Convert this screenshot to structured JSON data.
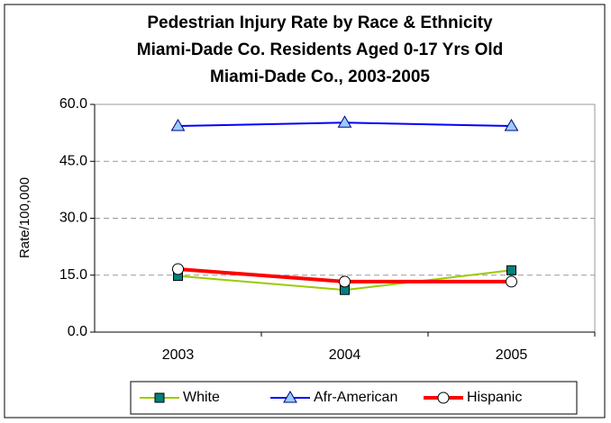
{
  "chart_data": {
    "type": "line",
    "title": [
      "Pedestrian Injury Rate by Race & Ethnicity",
      "Miami-Dade Co. Residents Aged 0-17 Yrs Old",
      "Miami-Dade Co., 2003-2005"
    ],
    "y_label": "Rate/100,000",
    "categories": [
      "2003",
      "2004",
      "2005"
    ],
    "series": [
      {
        "name": "White",
        "color": "#99cc00",
        "marker": "square",
        "marker_color": "#008080",
        "values": [
          14.8,
          11.1,
          16.3
        ]
      },
      {
        "name": "Afr-American",
        "color": "#0000ff",
        "marker": "triangle",
        "marker_color": "#99ccff",
        "values": [
          54.3,
          55.2,
          54.3
        ]
      },
      {
        "name": "Hispanic",
        "color": "#ff0000",
        "marker": "circle",
        "marker_color": "#ffffff",
        "values": [
          16.6,
          13.3,
          13.3
        ]
      }
    ],
    "ylim": [
      0,
      60
    ],
    "yticks": [
      {
        "value": 0,
        "label": "0.0"
      },
      {
        "value": 15,
        "label": "15.0"
      },
      {
        "value": 30,
        "label": "30.0"
      },
      {
        "value": 45,
        "label": "45.0"
      },
      {
        "value": 60,
        "label": "60.0"
      }
    ],
    "grid": true,
    "legend": "bottom"
  }
}
